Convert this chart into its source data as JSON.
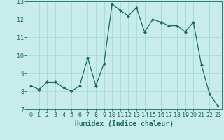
{
  "x": [
    0,
    1,
    2,
    3,
    4,
    5,
    6,
    7,
    8,
    9,
    10,
    11,
    12,
    13,
    14,
    15,
    16,
    17,
    18,
    19,
    20,
    21,
    22,
    23
  ],
  "y": [
    8.3,
    8.1,
    8.5,
    8.5,
    8.2,
    8.0,
    8.3,
    9.85,
    8.3,
    9.55,
    12.85,
    12.5,
    12.2,
    12.65,
    11.3,
    12.0,
    11.85,
    11.65,
    11.65,
    11.3,
    11.85,
    9.45,
    7.85,
    7.2
  ],
  "line_color": "#1a6b5a",
  "marker": "D",
  "marker_size": 2,
  "bg_color": "#c8ebeb",
  "grid_color": "#a8d8d8",
  "xlabel": "Humidex (Indice chaleur)",
  "ylim": [
    7,
    13
  ],
  "xlim": [
    -0.5,
    23.5
  ],
  "yticks": [
    7,
    8,
    9,
    10,
    11,
    12,
    13
  ],
  "xticks": [
    0,
    1,
    2,
    3,
    4,
    5,
    6,
    7,
    8,
    9,
    10,
    11,
    12,
    13,
    14,
    15,
    16,
    17,
    18,
    19,
    20,
    21,
    22,
    23
  ],
  "tick_color": "#1a6b5a",
  "label_fontsize": 7,
  "tick_fontsize": 6,
  "linewidth": 0.9
}
